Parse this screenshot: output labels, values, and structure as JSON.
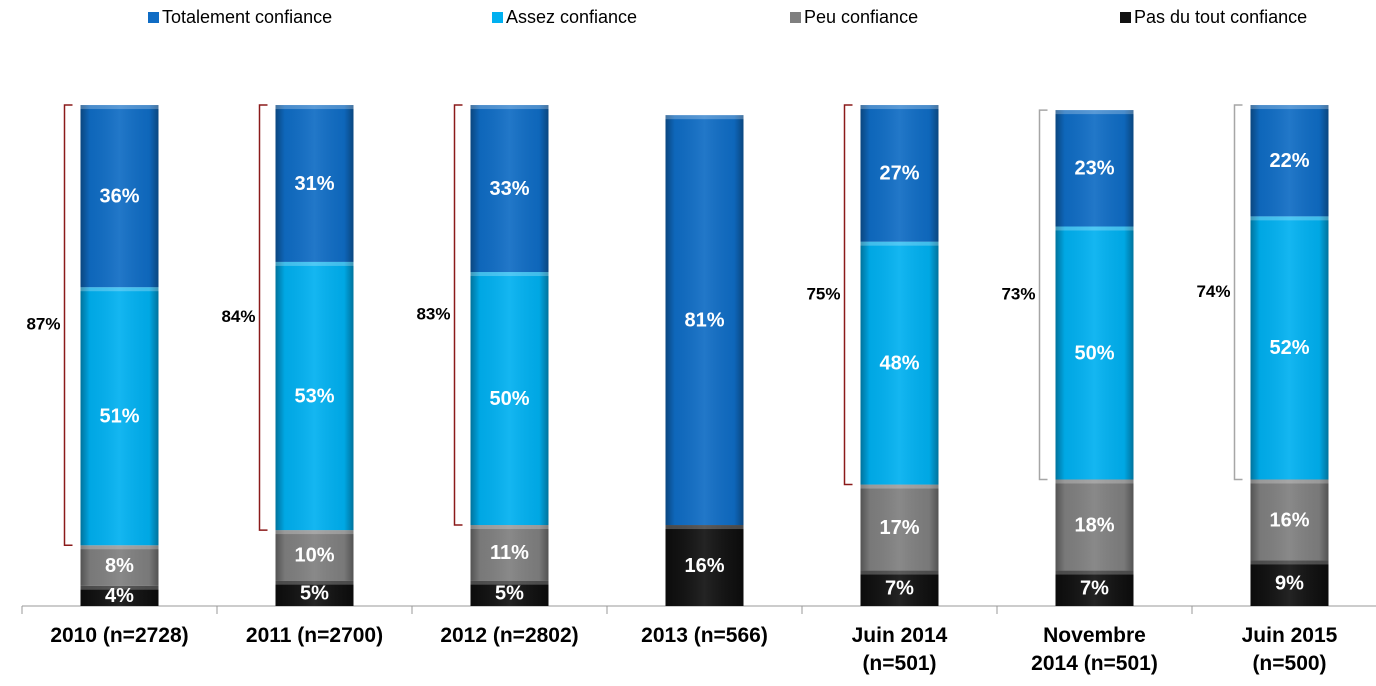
{
  "chart_data": {
    "type": "stacked_bar",
    "categories": [
      "2010 (n=2728)",
      "2011 (n=2700)",
      "2012 (n=2802)",
      "2013 (n=566)",
      "Juin 2014\n(n=501)",
      "Novembre\n2014 (n=501)",
      "Juin 2015\n(n=500)"
    ],
    "series": [
      {
        "name": "Pas du tout confiance",
        "color": "#111111",
        "values": [
          4,
          5,
          5,
          16,
          7,
          7,
          9
        ],
        "value_labels": [
          "4%",
          "5%",
          "5%",
          "16%",
          "7%",
          "7%",
          "9%"
        ]
      },
      {
        "name": "Peu confiance",
        "color": "#7f7f7f",
        "values": [
          8,
          10,
          11,
          null,
          17,
          18,
          16
        ],
        "value_labels": [
          "8%",
          "10%",
          "11%",
          null,
          "17%",
          "18%",
          "16%"
        ]
      },
      {
        "name": "Assez confiance",
        "color": "#00b0f0",
        "values": [
          51,
          53,
          50,
          null,
          48,
          50,
          52
        ],
        "value_labels": [
          "51%",
          "53%",
          "50%",
          null,
          "48%",
          "50%",
          "52%"
        ]
      },
      {
        "name": "Totalement confiance",
        "color": "#0f6cc4",
        "values": [
          36,
          31,
          33,
          81,
          27,
          23,
          22
        ],
        "value_labels": [
          "36%",
          "31%",
          "33%",
          "81%",
          "27%",
          "23%",
          "22%"
        ]
      }
    ],
    "legend_order": [
      "Totalement confiance",
      "Assez confiance",
      "Peu confiance",
      "Pas du tout confiance"
    ],
    "brackets": {
      "values": [
        87,
        84,
        83,
        null,
        75,
        73,
        74
      ],
      "value_labels": [
        "87%",
        "84%",
        "83%",
        null,
        "75%",
        "73%",
        "74%"
      ],
      "colors": [
        "#8b1a1a",
        "#8b1a1a",
        "#8b1a1a",
        null,
        "#8b1a1a",
        "#a6a6a6",
        "#a6a6a6"
      ]
    },
    "ylim": [
      0,
      100
    ]
  }
}
